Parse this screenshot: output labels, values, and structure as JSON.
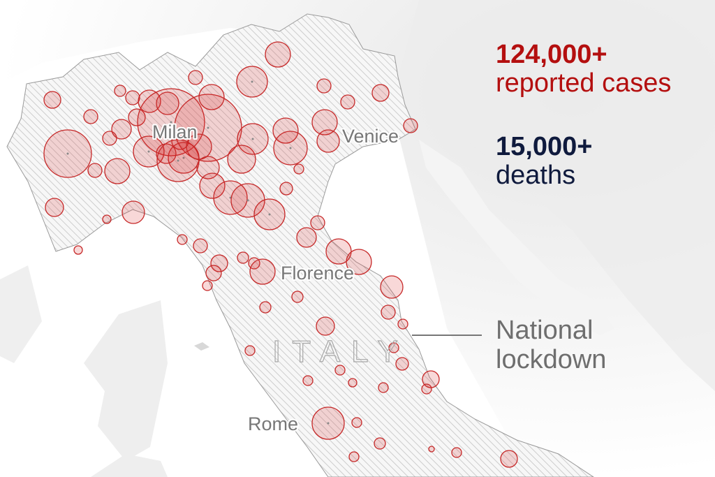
{
  "map": {
    "country_label": "ITALY",
    "cities": [
      {
        "id": "milan",
        "name": "Milan"
      },
      {
        "id": "venice",
        "name": "Venice"
      },
      {
        "id": "florence",
        "name": "Florence"
      },
      {
        "id": "rome",
        "name": "Rome"
      }
    ]
  },
  "stats": {
    "cases": {
      "value": "124,000+",
      "label": "reported cases",
      "color": "#b40f0f"
    },
    "deaths": {
      "value": "15,000+",
      "label": "deaths",
      "color": "#0f1a3d"
    }
  },
  "annotation": {
    "line1": "National",
    "line2": "lockdown"
  },
  "colors": {
    "bubble_fill": "#d62828",
    "bubble_stroke": "#c62828",
    "land_neighbors": "#ececec",
    "italy_hatch": "#cfcfcf"
  }
}
